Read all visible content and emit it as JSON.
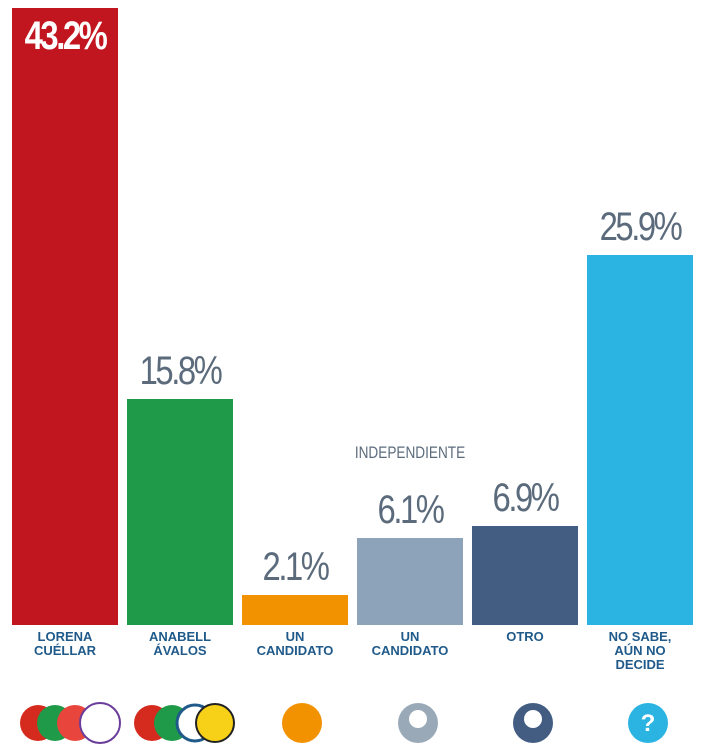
{
  "chart_data": {
    "type": "bar",
    "categories": [
      "LORENA\nCUÉLLAR",
      "ANABELL\nÁVALOS",
      "UN\nCANDIDATO",
      "UN\nCANDIDATO",
      "OTRO",
      "NO SABE,\nAÚN NO\nDECIDE"
    ],
    "values": [
      43.2,
      15.8,
      2.1,
      6.1,
      6.9,
      25.9
    ],
    "value_labels": [
      "43.2%",
      "15.8%",
      "2.1%",
      "6.1%",
      "6.9%",
      "25.9%"
    ],
    "colors": [
      "#c1161f",
      "#1f9a48",
      "#f39200",
      "#8ca3ba",
      "#425c82",
      "#2bb4e2"
    ],
    "annotation": "INDEPENDIENTE"
  }
}
